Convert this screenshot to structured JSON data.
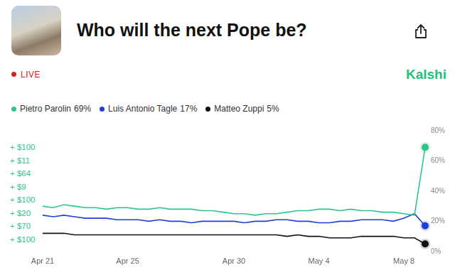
{
  "header": {
    "title": "Who will the next Pope be?",
    "status": "LIVE",
    "brand": "Kalshi"
  },
  "side_labels": [
    "+ $100",
    "+ $11",
    "+ $64",
    "+ $9",
    "+ $100",
    "+ $20",
    "+ $70",
    "+ $100"
  ],
  "chart_data": {
    "type": "line",
    "categories": [
      "Apr 21",
      null,
      null,
      null,
      null,
      null,
      null,
      null,
      "Apr 25",
      null,
      null,
      null,
      null,
      null,
      null,
      null,
      null,
      null,
      "Apr 30",
      null,
      null,
      null,
      null,
      null,
      null,
      null,
      "May 4",
      null,
      null,
      null,
      null,
      null,
      null,
      null,
      "May 8",
      null,
      null
    ],
    "series": [
      {
        "name": "Pietro Parolin",
        "color": "#2ec48a",
        "legend_value": "69%",
        "values": [
          30,
          29,
          31,
          30,
          29,
          29,
          28,
          29,
          29,
          28,
          28,
          29,
          28,
          28,
          28,
          27,
          27,
          26,
          25,
          25,
          24,
          25,
          25,
          26,
          27,
          27,
          28,
          28,
          27,
          28,
          27,
          27,
          26,
          26,
          25,
          24,
          69
        ]
      },
      {
        "name": "Luis Antonio Tagle",
        "color": "#1f3fd6",
        "legend_value": "17%",
        "values": [
          24,
          23,
          24,
          23,
          22,
          22,
          22,
          21,
          21,
          21,
          20,
          21,
          20,
          20,
          19,
          20,
          20,
          20,
          20,
          19,
          20,
          20,
          21,
          21,
          20,
          20,
          19,
          19,
          20,
          20,
          21,
          21,
          21,
          20,
          22,
          25,
          17
        ]
      },
      {
        "name": "Matteo Zuppi",
        "color": "#111111",
        "legend_value": "5%",
        "values": [
          12,
          12,
          12,
          11,
          11,
          11,
          11,
          11,
          11,
          11,
          11,
          11,
          11,
          11,
          11,
          11,
          11,
          11,
          11,
          11,
          11,
          11,
          11,
          10,
          11,
          10,
          10,
          9,
          9,
          9,
          10,
          10,
          10,
          10,
          9,
          9,
          5
        ]
      }
    ],
    "ylim": [
      0,
      80
    ],
    "yticks": [
      {
        "value": 0,
        "label": "0%"
      },
      {
        "value": 20,
        "label": "20%"
      },
      {
        "value": 40,
        "label": "40%"
      },
      {
        "value": 60,
        "label": "60%"
      },
      {
        "value": 80,
        "label": "80%"
      }
    ],
    "grid": false,
    "legend": "top-left"
  }
}
